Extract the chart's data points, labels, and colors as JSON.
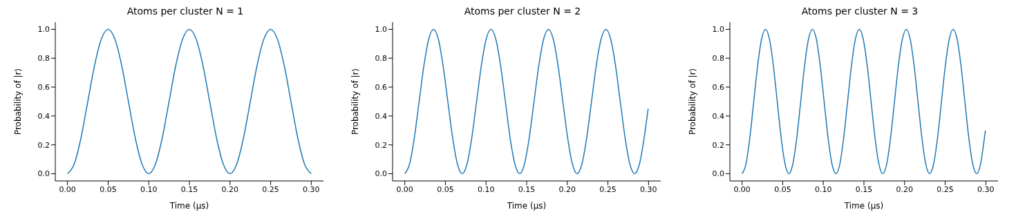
{
  "chart_data": [
    {
      "type": "line",
      "title": "Atoms per cluster N = 1",
      "xlabel": "Time (μs)",
      "ylabel": "Probability of |r⟩",
      "xlim": [
        -0.015,
        0.315
      ],
      "ylim": [
        -0.05,
        1.05
      ],
      "xticks": [
        {
          "value": 0,
          "label": "0.00"
        },
        {
          "value": 0.05,
          "label": "0.05"
        },
        {
          "value": 0.1,
          "label": "0.10"
        },
        {
          "value": 0.15,
          "label": "0.15"
        },
        {
          "value": 0.2,
          "label": "0.20"
        },
        {
          "value": 0.25,
          "label": "0.25"
        },
        {
          "value": 0.3,
          "label": "0.30"
        }
      ],
      "yticks": [
        {
          "value": 0,
          "label": "0.0"
        },
        {
          "value": 0.2,
          "label": "0.2"
        },
        {
          "value": 0.4,
          "label": "0.4"
        },
        {
          "value": 0.6,
          "label": "0.6"
        },
        {
          "value": 0.8,
          "label": "0.8"
        },
        {
          "value": 1,
          "label": "1.0"
        }
      ],
      "marker": "none",
      "line_style": "solid",
      "series": [
        {
          "color": "#1f77b4",
          "x": [
            0,
            0.0083,
            0.0167,
            0.025,
            0.0333,
            0.0417,
            0.05,
            0.0583,
            0.0667,
            0.075,
            0.0833,
            0.0917,
            0.1,
            0.1083,
            0.1167,
            0.125,
            0.1333,
            0.1417,
            0.15,
            0.1583,
            0.1667,
            0.175,
            0.1833,
            0.1917,
            0.2,
            0.2083,
            0.2167,
            0.225,
            0.2333,
            0.2417,
            0.25,
            0.2583,
            0.2667,
            0.275,
            0.2833,
            0.2917,
            0.3
          ],
          "values": [
            0,
            0.067,
            0.25,
            0.5,
            0.75,
            0.933,
            1,
            0.933,
            0.75,
            0.5,
            0.25,
            0.067,
            0,
            0.067,
            0.25,
            0.5,
            0.75,
            0.933,
            1,
            0.933,
            0.75,
            0.5,
            0.25,
            0.067,
            0,
            0.067,
            0.25,
            0.5,
            0.75,
            0.933,
            1,
            0.933,
            0.75,
            0.5,
            0.25,
            0.067,
            0
          ]
        }
      ]
    },
    {
      "type": "line",
      "title": "Atoms per cluster N = 2",
      "xlabel": "Time (μs)",
      "ylabel": "Probability of |r⟩",
      "xlim": [
        -0.015,
        0.315
      ],
      "ylim": [
        -0.05,
        1.05
      ],
      "xticks": [
        {
          "value": 0,
          "label": "0.00"
        },
        {
          "value": 0.05,
          "label": "0.05"
        },
        {
          "value": 0.1,
          "label": "0.10"
        },
        {
          "value": 0.15,
          "label": "0.15"
        },
        {
          "value": 0.2,
          "label": "0.20"
        },
        {
          "value": 0.25,
          "label": "0.25"
        },
        {
          "value": 0.3,
          "label": "0.30"
        }
      ],
      "yticks": [
        {
          "value": 0,
          "label": "0.0"
        },
        {
          "value": 0.2,
          "label": "0.2"
        },
        {
          "value": 0.4,
          "label": "0.4"
        },
        {
          "value": 0.6,
          "label": "0.6"
        },
        {
          "value": 0.8,
          "label": "0.8"
        },
        {
          "value": 1,
          "label": "1.0"
        }
      ],
      "marker": "none",
      "line_style": "solid",
      "series": [
        {
          "color": "#1f77b4",
          "x": [
            0,
            0.0059,
            0.0118,
            0.0177,
            0.0236,
            0.0295,
            0.0354,
            0.0413,
            0.0471,
            0.053,
            0.0589,
            0.0648,
            0.0707,
            0.0766,
            0.0825,
            0.0884,
            0.0943,
            0.1002,
            0.1061,
            0.112,
            0.1179,
            0.1238,
            0.1296,
            0.1355,
            0.1414,
            0.1473,
            0.1532,
            0.1591,
            0.165,
            0.1709,
            0.1768,
            0.1827,
            0.1886,
            0.1945,
            0.2004,
            0.2063,
            0.2121,
            0.218,
            0.2239,
            0.2298,
            0.2357,
            0.2416,
            0.2475,
            0.2534,
            0.2593,
            0.2652,
            0.2711,
            0.277,
            0.2829,
            0.2888,
            0.2946,
            0.2995
          ],
          "values": [
            0,
            0.067,
            0.25,
            0.5,
            0.75,
            0.933,
            1,
            0.933,
            0.75,
            0.5,
            0.25,
            0.067,
            0,
            0.067,
            0.25,
            0.5,
            0.75,
            0.933,
            1,
            0.933,
            0.75,
            0.5,
            0.25,
            0.067,
            0,
            0.067,
            0.25,
            0.5,
            0.75,
            0.933,
            1,
            0.933,
            0.75,
            0.5,
            0.25,
            0.067,
            0,
            0.067,
            0.25,
            0.5,
            0.75,
            0.933,
            1,
            0.933,
            0.75,
            0.5,
            0.25,
            0.067,
            0,
            0.067,
            0.25,
            0.45
          ]
        }
      ]
    },
    {
      "type": "line",
      "title": "Atoms per cluster N = 3",
      "xlabel": "Time (μs)",
      "ylabel": "Probability of |r⟩",
      "xlim": [
        -0.015,
        0.315
      ],
      "ylim": [
        -0.05,
        1.05
      ],
      "xticks": [
        {
          "value": 0,
          "label": "0.00"
        },
        {
          "value": 0.05,
          "label": "0.05"
        },
        {
          "value": 0.1,
          "label": "0.10"
        },
        {
          "value": 0.15,
          "label": "0.15"
        },
        {
          "value": 0.2,
          "label": "0.20"
        },
        {
          "value": 0.25,
          "label": "0.25"
        },
        {
          "value": 0.3,
          "label": "0.30"
        }
      ],
      "yticks": [
        {
          "value": 0,
          "label": "0.0"
        },
        {
          "value": 0.2,
          "label": "0.2"
        },
        {
          "value": 0.4,
          "label": "0.4"
        },
        {
          "value": 0.6,
          "label": "0.6"
        },
        {
          "value": 0.8,
          "label": "0.8"
        },
        {
          "value": 1,
          "label": "1.0"
        }
      ],
      "marker": "none",
      "line_style": "solid",
      "series": [
        {
          "color": "#1f77b4",
          "x": [
            0,
            0.0048,
            0.0096,
            0.0144,
            0.0192,
            0.0241,
            0.0289,
            0.0337,
            0.0385,
            0.0433,
            0.0481,
            0.0529,
            0.0577,
            0.0625,
            0.0674,
            0.0722,
            0.077,
            0.0818,
            0.0866,
            0.0914,
            0.0962,
            0.101,
            0.1058,
            0.1107,
            0.1155,
            0.1203,
            0.1251,
            0.1299,
            0.1347,
            0.1395,
            0.1443,
            0.1491,
            0.154,
            0.1588,
            0.1636,
            0.1684,
            0.1732,
            0.178,
            0.1828,
            0.1876,
            0.1924,
            0.1973,
            0.2021,
            0.2069,
            0.2117,
            0.2165,
            0.2213,
            0.2261,
            0.2309,
            0.2357,
            0.2406,
            0.2454,
            0.2502,
            0.255,
            0.2598,
            0.2646,
            0.2694,
            0.2742,
            0.279,
            0.2839,
            0.2887,
            0.2935,
            0.2983,
            0.2995
          ],
          "values": [
            0,
            0.067,
            0.25,
            0.5,
            0.75,
            0.933,
            1,
            0.933,
            0.75,
            0.5,
            0.25,
            0.067,
            0,
            0.067,
            0.25,
            0.5,
            0.75,
            0.933,
            1,
            0.933,
            0.75,
            0.5,
            0.25,
            0.067,
            0,
            0.067,
            0.25,
            0.5,
            0.75,
            0.933,
            1,
            0.933,
            0.75,
            0.5,
            0.25,
            0.067,
            0,
            0.067,
            0.25,
            0.5,
            0.75,
            0.933,
            1,
            0.933,
            0.75,
            0.5,
            0.25,
            0.067,
            0,
            0.067,
            0.25,
            0.5,
            0.75,
            0.933,
            1,
            0.933,
            0.75,
            0.5,
            0.25,
            0.067,
            0,
            0.067,
            0.25,
            0.3
          ]
        }
      ]
    }
  ]
}
